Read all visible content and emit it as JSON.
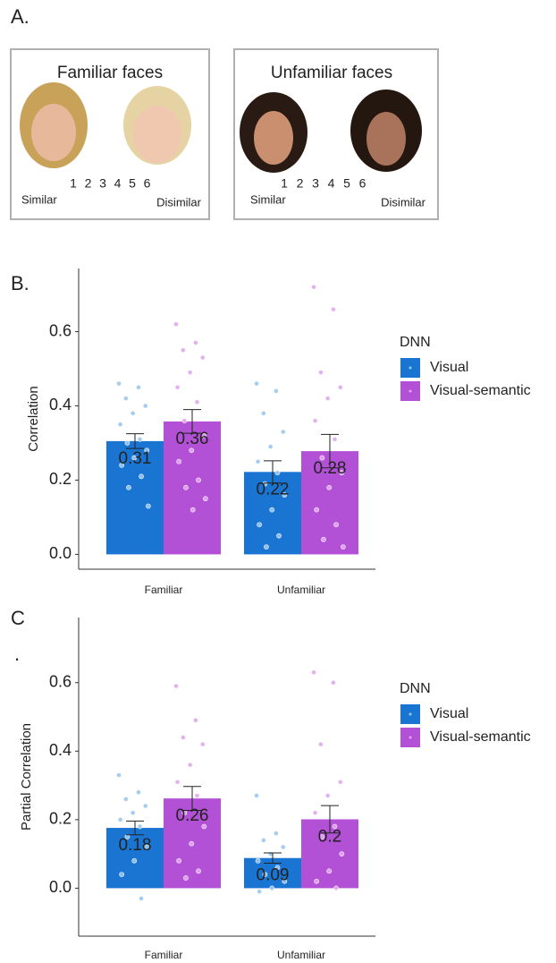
{
  "panel_a": {
    "label": "A.",
    "panels": [
      {
        "title": "Familiar faces",
        "scale": [
          1,
          2,
          3,
          4,
          5,
          6
        ],
        "low": "Similar",
        "high": "Disimilar"
      },
      {
        "title": "Unfamiliar faces",
        "scale": [
          1,
          2,
          3,
          4,
          5,
          6
        ],
        "low": "Similar",
        "high": "Disimilar"
      }
    ]
  },
  "chart_data": [
    {
      "type": "bar",
      "panel_label": [
        "B."
      ],
      "y_label": "Correlation",
      "categories": [
        "Familiar",
        "Unfamiliar"
      ],
      "ylim": [
        -0.04,
        0.77
      ],
      "yticks": [
        {
          "value": 0,
          "label": "0.0"
        },
        0.2,
        0.4,
        0.6
      ],
      "legend_title": "DNN",
      "legend": "right",
      "series": [
        {
          "name": "Visual",
          "color": "#1a75d2",
          "point_color": "#9cc8f0",
          "values": [
            0.305,
            0.222
          ],
          "value_labels": [
            "0.31",
            "0.22"
          ],
          "errors": [
            0.02,
            0.03
          ],
          "points": [
            [
              0.46,
              0.45,
              0.42,
              0.4,
              0.38,
              0.35,
              0.31,
              0.3,
              0.28,
              0.26,
              0.24,
              0.21,
              0.18,
              0.13
            ],
            [
              0.46,
              0.44,
              0.38,
              0.33,
              0.29,
              0.25,
              0.22,
              0.19,
              0.16,
              0.12,
              0.08,
              0.05,
              0.02
            ]
          ]
        },
        {
          "name": "Visual-semantic",
          "color": "#b250d6",
          "point_color": "#e2a9ef",
          "values": [
            0.358,
            0.278
          ],
          "value_labels": [
            "0.36",
            "0.28"
          ],
          "errors": [
            0.032,
            0.045
          ],
          "points": [
            [
              0.62,
              0.57,
              0.55,
              0.53,
              0.49,
              0.45,
              0.41,
              0.36,
              0.32,
              0.28,
              0.25,
              0.2,
              0.18,
              0.15,
              0.12
            ],
            [
              0.72,
              0.66,
              0.49,
              0.45,
              0.42,
              0.36,
              0.31,
              0.26,
              0.22,
              0.18,
              0.12,
              0.08,
              0.04,
              0.02
            ]
          ]
        }
      ]
    },
    {
      "type": "bar",
      "panel_label": [
        "C",
        "."
      ],
      "y_label": "Partial Correlation",
      "categories": [
        "Familiar",
        "Unfamiliar"
      ],
      "ylim": [
        -0.14,
        0.79
      ],
      "yticks": [
        {
          "value": 0,
          "label": "0.0"
        },
        0.2,
        0.4,
        0.6
      ],
      "legend_title": "DNN",
      "legend": "right",
      "series": [
        {
          "name": "Visual",
          "color": "#1a75d2",
          "point_color": "#9cc8f0",
          "values": [
            0.176,
            0.088
          ],
          "value_labels": [
            "0.18",
            "0.09"
          ],
          "errors": [
            0.02,
            0.015
          ],
          "points": [
            [
              0.33,
              0.28,
              0.26,
              0.24,
              0.22,
              0.2,
              0.18,
              0.15,
              0.12,
              0.08,
              0.04,
              -0.03
            ],
            [
              0.27,
              0.16,
              0.14,
              0.12,
              0.1,
              0.08,
              0.06,
              0.04,
              0.02,
              0,
              -0.01
            ]
          ]
        },
        {
          "name": "Visual-semantic",
          "color": "#b250d6",
          "point_color": "#e2a9ef",
          "values": [
            0.262,
            0.201
          ],
          "value_labels": [
            "0.26",
            "0.2"
          ],
          "errors": [
            0.035,
            0.04
          ],
          "points": [
            [
              0.59,
              0.49,
              0.44,
              0.42,
              0.36,
              0.31,
              0.27,
              0.22,
              0.18,
              0.13,
              0.08,
              0.05,
              0.03
            ],
            [
              0.63,
              0.6,
              0.42,
              0.31,
              0.27,
              0.22,
              0.18,
              0.15,
              0.1,
              0.05,
              0.02,
              0
            ]
          ]
        }
      ]
    }
  ]
}
